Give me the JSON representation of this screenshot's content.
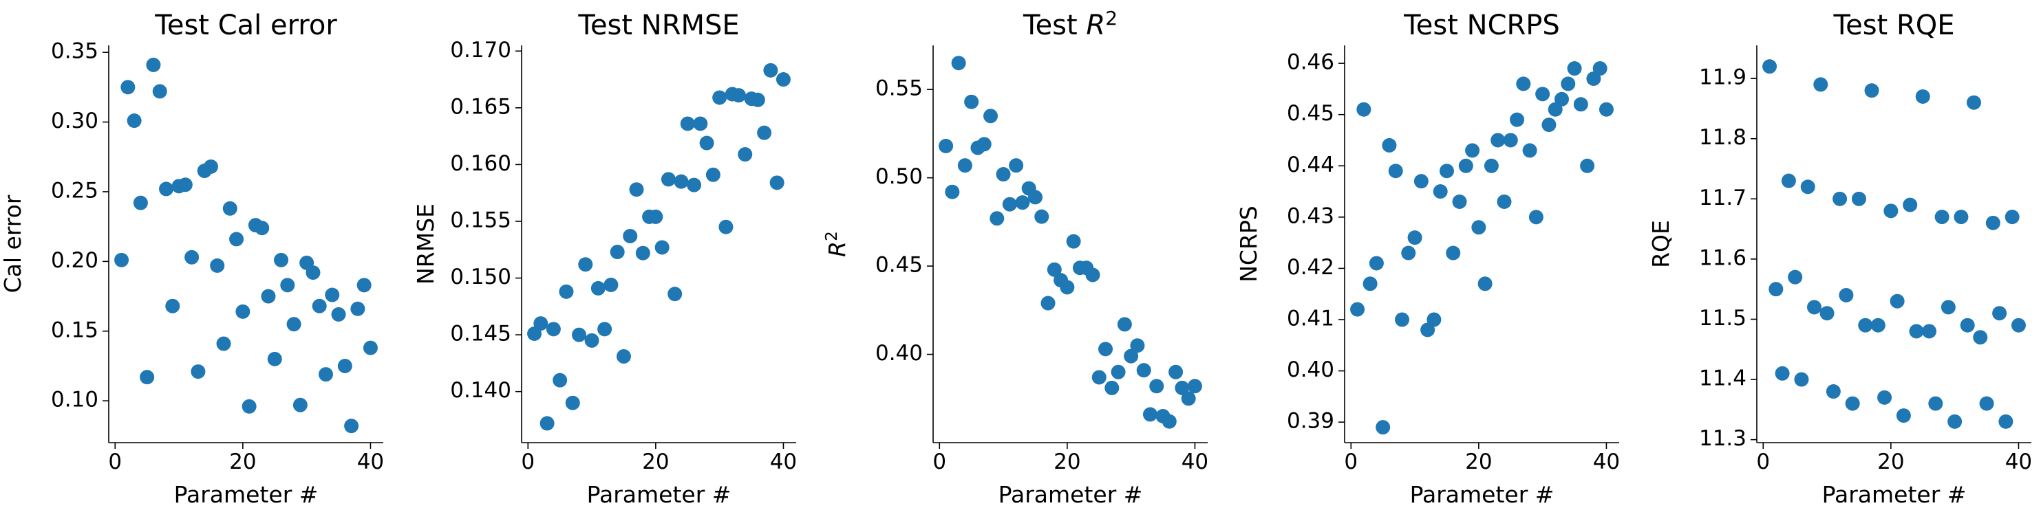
{
  "chart_data": [
    {
      "type": "scatter",
      "title": "Test Cal error",
      "xlabel": "Parameter #",
      "ylabel": "Cal error",
      "xlim": [
        -1,
        42
      ],
      "ylim": [
        0.07,
        0.355
      ],
      "xticks": [
        0,
        20,
        40
      ],
      "yticks": [
        0.1,
        0.15,
        0.2,
        0.25,
        0.3,
        0.35
      ],
      "ytick_labels": [
        "0.10",
        "0.15",
        "0.20",
        "0.25",
        "0.30",
        "0.35"
      ],
      "grid": false,
      "marker_color": "#1f77b4",
      "x": [
        1,
        2,
        3,
        4,
        5,
        6,
        7,
        8,
        9,
        10,
        11,
        12,
        13,
        14,
        15,
        16,
        17,
        18,
        19,
        20,
        21,
        22,
        23,
        24,
        25,
        26,
        27,
        28,
        29,
        30,
        31,
        32,
        33,
        34,
        35,
        36,
        37,
        38,
        39,
        40
      ],
      "y": [
        0.201,
        0.325,
        0.301,
        0.242,
        0.117,
        0.341,
        0.322,
        0.252,
        0.168,
        0.254,
        0.255,
        0.203,
        0.121,
        0.265,
        0.268,
        0.197,
        0.141,
        0.238,
        0.216,
        0.164,
        0.096,
        0.226,
        0.224,
        0.175,
        0.13,
        0.201,
        0.183,
        0.155,
        0.097,
        0.199,
        0.192,
        0.168,
        0.119,
        0.176,
        0.162,
        0.125,
        0.082,
        0.166,
        0.183,
        0.138
      ]
    },
    {
      "type": "scatter",
      "title": "Test NRMSE",
      "xlabel": "Parameter #",
      "ylabel": "NRMSE",
      "xlim": [
        -1,
        42
      ],
      "ylim": [
        0.1355,
        0.1705
      ],
      "xticks": [
        0,
        20,
        40
      ],
      "yticks": [
        0.14,
        0.145,
        0.15,
        0.155,
        0.16,
        0.165,
        0.17
      ],
      "ytick_labels": [
        "0.140",
        "0.145",
        "0.150",
        "0.155",
        "0.160",
        "0.165",
        "0.170"
      ],
      "grid": false,
      "marker_color": "#1f77b4",
      "x": [
        1,
        2,
        3,
        4,
        5,
        6,
        7,
        8,
        9,
        10,
        11,
        12,
        13,
        14,
        15,
        16,
        17,
        18,
        19,
        20,
        21,
        22,
        23,
        24,
        25,
        26,
        27,
        28,
        29,
        30,
        31,
        32,
        33,
        34,
        35,
        36,
        37,
        38,
        39,
        40
      ],
      "y": [
        0.1451,
        0.146,
        0.1372,
        0.1455,
        0.141,
        0.1488,
        0.139,
        0.145,
        0.1512,
        0.1445,
        0.1491,
        0.1455,
        0.1494,
        0.1523,
        0.1431,
        0.1537,
        0.1578,
        0.1522,
        0.1554,
        0.1554,
        0.1527,
        0.1587,
        0.1486,
        0.1585,
        0.1636,
        0.1582,
        0.1636,
        0.1619,
        0.1591,
        0.1659,
        0.1545,
        0.1662,
        0.1661,
        0.1609,
        0.1658,
        0.1657,
        0.1628,
        0.1683,
        0.1584,
        0.1675
      ]
    },
    {
      "type": "scatter",
      "title": "Test R²",
      "xlabel": "Parameter #",
      "ylabel": "R²",
      "xlim": [
        -1,
        42
      ],
      "ylim": [
        0.35,
        0.575
      ],
      "xticks": [
        0,
        20,
        40
      ],
      "yticks": [
        0.4,
        0.45,
        0.5,
        0.55
      ],
      "ytick_labels": [
        "0.40",
        "0.45",
        "0.50",
        "0.55"
      ],
      "grid": false,
      "marker_color": "#1f77b4",
      "x": [
        1,
        2,
        3,
        4,
        5,
        6,
        7,
        8,
        9,
        10,
        11,
        12,
        13,
        14,
        15,
        16,
        17,
        18,
        19,
        20,
        21,
        22,
        23,
        24,
        25,
        26,
        27,
        28,
        29,
        30,
        31,
        32,
        33,
        34,
        35,
        36,
        37,
        38,
        39,
        40
      ],
      "y": [
        0.518,
        0.492,
        0.565,
        0.507,
        0.543,
        0.517,
        0.519,
        0.535,
        0.477,
        0.502,
        0.485,
        0.507,
        0.486,
        0.494,
        0.489,
        0.478,
        0.429,
        0.448,
        0.442,
        0.438,
        0.464,
        0.449,
        0.449,
        0.445,
        0.387,
        0.403,
        0.381,
        0.39,
        0.417,
        0.399,
        0.405,
        0.391,
        0.366,
        0.382,
        0.365,
        0.362,
        0.39,
        0.381,
        0.375,
        0.382
      ]
    },
    {
      "type": "scatter",
      "title": "Test NCRPS",
      "xlabel": "Parameter #",
      "ylabel": "NCRPS",
      "xlim": [
        -1,
        42
      ],
      "ylim": [
        0.386,
        0.4635
      ],
      "xticks": [
        0,
        20,
        40
      ],
      "yticks": [
        0.39,
        0.4,
        0.41,
        0.42,
        0.43,
        0.44,
        0.45,
        0.46
      ],
      "ytick_labels": [
        "0.39",
        "0.40",
        "0.41",
        "0.42",
        "0.43",
        "0.44",
        "0.45",
        "0.46"
      ],
      "grid": false,
      "marker_color": "#1f77b4",
      "x": [
        1,
        2,
        3,
        4,
        5,
        6,
        7,
        8,
        9,
        10,
        11,
        12,
        13,
        14,
        15,
        16,
        17,
        18,
        19,
        20,
        21,
        22,
        23,
        24,
        25,
        26,
        27,
        28,
        29,
        30,
        31,
        32,
        33,
        34,
        35,
        36,
        37,
        38,
        39,
        40
      ],
      "y": [
        0.412,
        0.451,
        0.417,
        0.421,
        0.389,
        0.444,
        0.439,
        0.41,
        0.423,
        0.426,
        0.437,
        0.408,
        0.41,
        0.435,
        0.439,
        0.423,
        0.433,
        0.44,
        0.443,
        0.428,
        0.417,
        0.44,
        0.445,
        0.433,
        0.445,
        0.449,
        0.456,
        0.443,
        0.43,
        0.454,
        0.448,
        0.451,
        0.453,
        0.456,
        0.459,
        0.452,
        0.44,
        0.457,
        0.459,
        0.451
      ]
    },
    {
      "type": "scatter",
      "title": "Test RQE",
      "xlabel": "Parameter #",
      "ylabel": "RQE",
      "xlim": [
        -1,
        42
      ],
      "ylim": [
        11.295,
        11.955
      ],
      "xticks": [
        0,
        20,
        40
      ],
      "yticks": [
        11.3,
        11.4,
        11.5,
        11.6,
        11.7,
        11.8,
        11.9
      ],
      "ytick_labels": [
        "11.3",
        "11.4",
        "11.5",
        "11.6",
        "11.7",
        "11.8",
        "11.9"
      ],
      "grid": false,
      "marker_color": "#1f77b4",
      "x": [
        1,
        2,
        3,
        4,
        5,
        6,
        7,
        8,
        9,
        10,
        11,
        12,
        13,
        14,
        15,
        16,
        17,
        18,
        19,
        20,
        21,
        22,
        23,
        24,
        25,
        26,
        27,
        28,
        29,
        30,
        31,
        32,
        33,
        34,
        35,
        36,
        37,
        38,
        39,
        40
      ],
      "y": [
        11.92,
        11.55,
        11.41,
        11.73,
        11.57,
        11.4,
        11.72,
        11.52,
        11.89,
        11.51,
        11.38,
        11.7,
        11.54,
        11.36,
        11.7,
        11.49,
        11.88,
        11.49,
        11.37,
        11.68,
        11.53,
        11.34,
        11.69,
        11.48,
        11.87,
        11.48,
        11.36,
        11.67,
        11.52,
        11.33,
        11.67,
        11.49,
        11.86,
        11.47,
        11.36,
        11.66,
        11.51,
        11.33,
        11.67,
        11.49
      ]
    }
  ]
}
